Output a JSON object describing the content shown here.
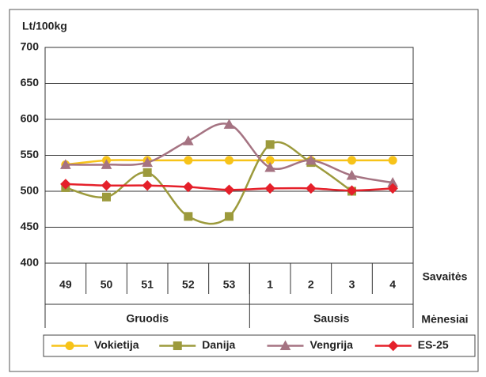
{
  "chart_data": {
    "type": "line",
    "y_label": "Lt/100kg",
    "x_label": "Savaitės",
    "month_label": "Mėnesiai",
    "months": [
      "Gruodis",
      "Sausis"
    ],
    "categories": [
      "49",
      "50",
      "51",
      "52",
      "53",
      "1",
      "2",
      "3",
      "4"
    ],
    "series": [
      {
        "name": "Vokietija",
        "color": "#f7c319",
        "marker": "circle",
        "values": [
          537,
          543,
          543,
          543,
          543,
          543,
          543,
          543,
          543
        ]
      },
      {
        "name": "Danija",
        "color": "#9c9a3c",
        "marker": "square",
        "values": [
          505,
          492,
          526,
          465,
          465,
          565,
          540,
          500,
          null
        ]
      },
      {
        "name": "Vengrija",
        "color": "#a57382",
        "marker": "triangle",
        "values": [
          537,
          537,
          540,
          570,
          593,
          533,
          543,
          522,
          512
        ]
      },
      {
        "name": "ES-25",
        "color": "#e5202a",
        "marker": "diamond",
        "values": [
          510,
          508,
          508,
          506,
          502,
          504,
          504,
          501,
          504
        ]
      }
    ],
    "ylim": [
      400,
      700
    ],
    "yticks": [
      400,
      450,
      500,
      550,
      600,
      650,
      700
    ],
    "grid": true,
    "smooth": true
  }
}
